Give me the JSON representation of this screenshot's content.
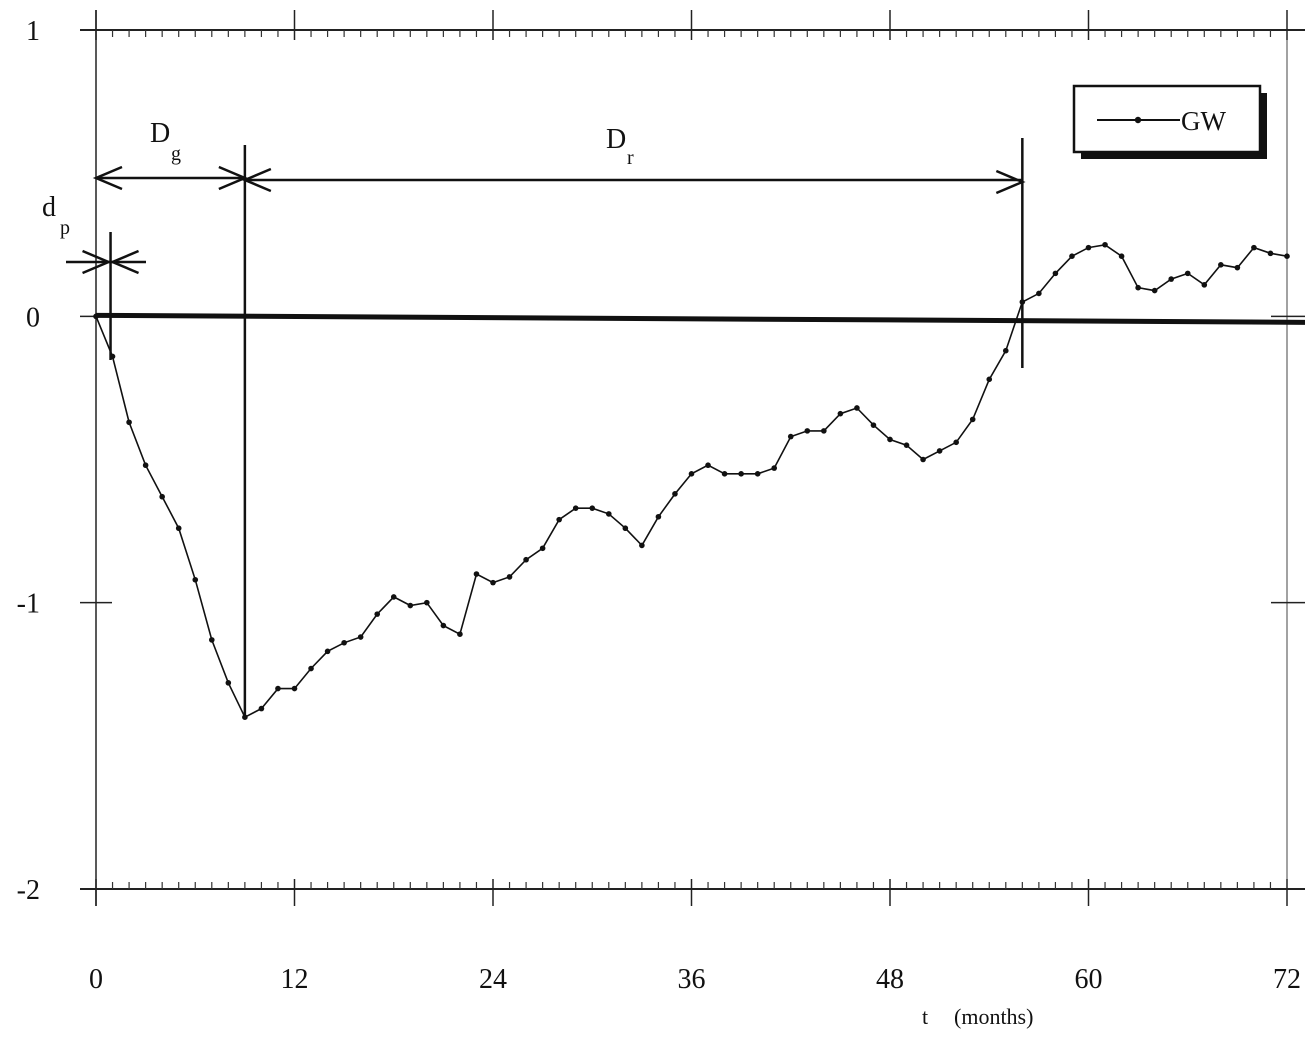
{
  "chart_data": {
    "type": "line",
    "xlabel": "t",
    "xlabel_unit": "(months)",
    "ylabel": "",
    "xlim": [
      0,
      72
    ],
    "ylim": [
      -2,
      1
    ],
    "x_ticks": [
      0,
      12,
      24,
      36,
      48,
      60,
      72
    ],
    "y_ticks": [
      1,
      0,
      -1,
      -2
    ],
    "x_tick_labels": [
      "0",
      "12",
      "24",
      "36",
      "48",
      "60",
      "72"
    ],
    "y_tick_labels": [
      "1",
      "0",
      "-1",
      "-2"
    ],
    "legend": {
      "position": "top-right"
    },
    "grid": false,
    "series": [
      {
        "name": "GW",
        "x": [
          0,
          1,
          2,
          3,
          4,
          5,
          6,
          7,
          8,
          9,
          10,
          11,
          12,
          13,
          14,
          15,
          16,
          17,
          18,
          19,
          20,
          21,
          22,
          23,
          24,
          25,
          26,
          27,
          28,
          29,
          30,
          31,
          32,
          33,
          34,
          35,
          36,
          37,
          38,
          39,
          40,
          41,
          42,
          43,
          44,
          45,
          46,
          47,
          48,
          49,
          50,
          51,
          52,
          53,
          54,
          55,
          56,
          57,
          58,
          59,
          60,
          61,
          62,
          63,
          64,
          65,
          66,
          67,
          68,
          69,
          70,
          71,
          72
        ],
        "values": [
          0,
          -0.14,
          -0.37,
          -0.52,
          -0.63,
          -0.74,
          -0.92,
          -1.13,
          -1.28,
          -1.4,
          -1.37,
          -1.3,
          -1.3,
          -1.23,
          -1.17,
          -1.14,
          -1.12,
          -1.04,
          -0.98,
          -1.01,
          -1.0,
          -1.08,
          -1.11,
          -0.9,
          -0.93,
          -0.91,
          -0.85,
          -0.81,
          -0.71,
          -0.67,
          -0.67,
          -0.69,
          -0.74,
          -0.8,
          -0.7,
          -0.62,
          -0.55,
          -0.52,
          -0.55,
          -0.55,
          -0.55,
          -0.53,
          -0.42,
          -0.4,
          -0.4,
          -0.34,
          -0.32,
          -0.38,
          -0.43,
          -0.45,
          -0.5,
          -0.47,
          -0.44,
          -0.36,
          -0.22,
          -0.12,
          0.05,
          0.08,
          0.15,
          0.21,
          0.24,
          0.25,
          0.21,
          0.1,
          0.09,
          0.13,
          0.15,
          0.11,
          0.18,
          0.17,
          0.24,
          0.22,
          0.21
        ]
      }
    ],
    "annotations": [
      {
        "main": "d",
        "sub": "p",
        "x_start": 0,
        "x_end": 1
      },
      {
        "main": "D",
        "sub": "g",
        "x_start": 0,
        "x_end": 9
      },
      {
        "main": "D",
        "sub": "r",
        "x_start": 9,
        "x_end": 56
      }
    ]
  }
}
